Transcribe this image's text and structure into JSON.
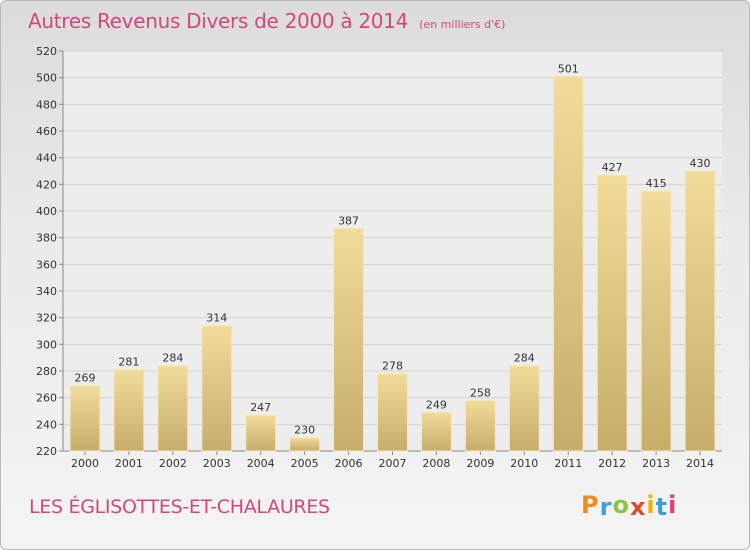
{
  "chart_title": "Autres Revenus Divers de 2000 à 2014",
  "chart_unit": "(en milliers d'€)",
  "commune": "LES ÉGLISOTTES-ET-CHALAURES",
  "logo": {
    "letters": [
      "P",
      "r",
      "o",
      "x",
      "i",
      "t",
      "i"
    ],
    "colors": [
      "#f08a1c",
      "#3aa0d8",
      "#8cc63e",
      "#e04a2a",
      "#f0b400",
      "#3aa0d8",
      "#e0407a"
    ]
  },
  "colors": {
    "title": "#d4477b",
    "bar_light": "#f2dc9b",
    "bar_dark": "#c6ad6a",
    "bar_edge": "#f6e9bf"
  },
  "chart_data": {
    "type": "bar",
    "categories": [
      "2000",
      "2001",
      "2002",
      "2003",
      "2004",
      "2005",
      "2006",
      "2007",
      "2008",
      "2009",
      "2010",
      "2011",
      "2012",
      "2013",
      "2014"
    ],
    "values": [
      269,
      281,
      284,
      314,
      247,
      230,
      387,
      278,
      249,
      258,
      284,
      501,
      427,
      415,
      430
    ],
    "data_labels": [
      "269",
      "281",
      "284",
      "314",
      "247",
      "230",
      "387",
      "278",
      "249",
      "258",
      "284",
      "501",
      "427",
      "415",
      "430"
    ],
    "ylim": [
      220,
      520
    ],
    "yticks": [
      "220",
      "240",
      "260",
      "280",
      "300",
      "320",
      "340",
      "360",
      "380",
      "400",
      "420",
      "440",
      "460",
      "480",
      "500",
      "520"
    ],
    "grid": "horizontal",
    "legend": "none"
  }
}
